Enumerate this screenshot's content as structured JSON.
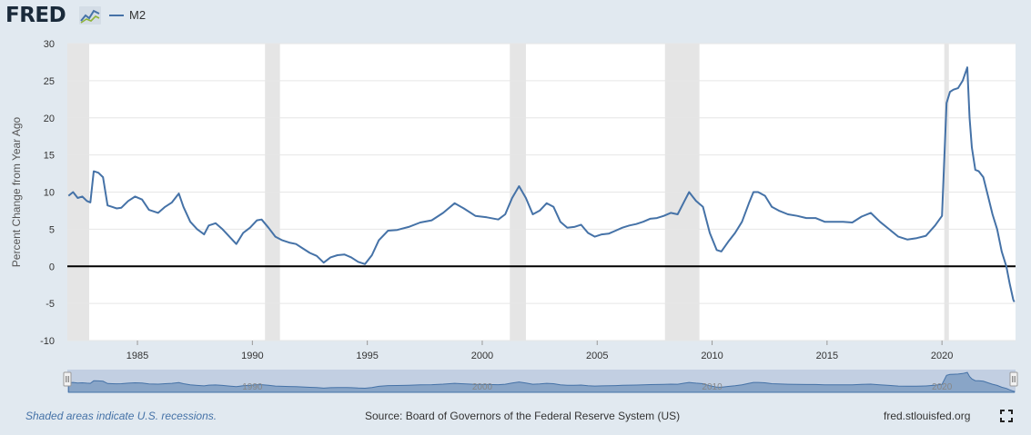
{
  "header": {
    "logo_text": "FRED",
    "legend_label": "M2"
  },
  "footer": {
    "recession_note": "Shaded areas indicate U.S. recessions.",
    "source": "Source: Board of Governors of the Federal Reserve System (US)",
    "site": "fred.stlouisfed.org"
  },
  "icons": {
    "logo": "line-chart-icon",
    "fullscreen": "fullscreen-icon"
  },
  "colors": {
    "series": "#4572a7",
    "recession_band": "#e5e5e5",
    "zero_line": "#000000",
    "background": "#e1e9f0"
  },
  "chart_data": {
    "type": "line",
    "title": "",
    "xlabel": "",
    "ylabel": "Percent Change from Year Ago",
    "xlim": [
      1981.95,
      2023.2
    ],
    "ylim": [
      -10,
      30
    ],
    "yticks": [
      30,
      25,
      20,
      15,
      10,
      5,
      0,
      -5,
      -10
    ],
    "xticks": [
      1985,
      1990,
      1995,
      2000,
      2005,
      2010,
      2015,
      2020
    ],
    "grid": true,
    "legend": "top-left",
    "recessions": [
      [
        1981.95,
        1982.9
      ],
      [
        1990.55,
        1991.2
      ],
      [
        2001.2,
        2001.9
      ],
      [
        2007.95,
        2009.45
      ],
      [
        2020.1,
        2020.3
      ]
    ],
    "navigator_labels": [
      "1990",
      "2000",
      "2010",
      "2020"
    ],
    "series": [
      {
        "name": "M2",
        "x": [
          1982.0,
          1982.2,
          1982.4,
          1982.6,
          1982.8,
          1982.95,
          1983.1,
          1983.3,
          1983.5,
          1983.7,
          1983.9,
          1984.1,
          1984.3,
          1984.6,
          1984.9,
          1985.2,
          1985.5,
          1985.9,
          1986.2,
          1986.5,
          1986.8,
          1987.0,
          1987.3,
          1987.6,
          1987.9,
          1988.1,
          1988.4,
          1988.7,
          1989.0,
          1989.3,
          1989.6,
          1989.9,
          1990.2,
          1990.4,
          1990.7,
          1991.0,
          1991.3,
          1991.6,
          1991.9,
          1992.2,
          1992.5,
          1992.8,
          1993.1,
          1993.4,
          1993.7,
          1994.0,
          1994.3,
          1994.6,
          1994.9,
          1995.2,
          1995.5,
          1995.9,
          1996.3,
          1996.8,
          1997.3,
          1997.8,
          1998.3,
          1998.8,
          1999.2,
          1999.7,
          2000.2,
          2000.7,
          2001.0,
          2001.3,
          2001.6,
          2001.9,
          2002.2,
          2002.5,
          2002.8,
          2003.1,
          2003.4,
          2003.7,
          2004.0,
          2004.3,
          2004.6,
          2004.9,
          2005.2,
          2005.5,
          2005.8,
          2006.1,
          2006.4,
          2006.7,
          2007.0,
          2007.3,
          2007.6,
          2007.9,
          2008.2,
          2008.5,
          2008.8,
          2009.0,
          2009.3,
          2009.6,
          2009.9,
          2010.2,
          2010.4,
          2010.7,
          2011.0,
          2011.3,
          2011.6,
          2011.8,
          2012.0,
          2012.3,
          2012.6,
          2012.9,
          2013.3,
          2013.7,
          2014.1,
          2014.5,
          2014.9,
          2015.3,
          2015.7,
          2016.1,
          2016.5,
          2016.9,
          2017.3,
          2017.7,
          2018.1,
          2018.5,
          2018.9,
          2019.3,
          2019.7,
          2020.0,
          2020.2,
          2020.35,
          2020.5,
          2020.7,
          2020.9,
          2021.1,
          2021.2,
          2021.3,
          2021.45,
          2021.6,
          2021.8,
          2022.0,
          2022.2,
          2022.4,
          2022.6,
          2022.8,
          2022.95,
          2023.1,
          2023.15
        ],
        "values": [
          9.5,
          10.0,
          9.2,
          9.4,
          8.8,
          8.6,
          12.8,
          12.6,
          12.0,
          8.2,
          8.0,
          7.8,
          7.9,
          8.8,
          9.4,
          9.0,
          7.6,
          7.2,
          8.0,
          8.6,
          9.8,
          8.0,
          6.0,
          5.0,
          4.3,
          5.5,
          5.8,
          5.0,
          4.0,
          3.0,
          4.5,
          5.2,
          6.2,
          6.3,
          5.2,
          4.0,
          3.5,
          3.2,
          3.0,
          2.4,
          1.8,
          1.4,
          0.5,
          1.2,
          1.5,
          1.6,
          1.2,
          0.6,
          0.3,
          1.5,
          3.5,
          4.8,
          4.9,
          5.3,
          5.9,
          6.2,
          7.2,
          8.5,
          7.8,
          6.8,
          6.6,
          6.3,
          7.0,
          9.2,
          10.8,
          9.2,
          7.0,
          7.5,
          8.5,
          8.0,
          6.0,
          5.2,
          5.3,
          5.6,
          4.5,
          4.0,
          4.3,
          4.4,
          4.8,
          5.2,
          5.5,
          5.7,
          6.0,
          6.4,
          6.5,
          6.8,
          7.2,
          7.0,
          8.8,
          10.0,
          8.8,
          8.0,
          4.5,
          2.2,
          2.0,
          3.3,
          4.5,
          6.0,
          8.5,
          10.0,
          10.0,
          9.5,
          8.0,
          7.5,
          7.0,
          6.8,
          6.5,
          6.5,
          6.0,
          6.0,
          6.0,
          5.9,
          6.7,
          7.2,
          6.0,
          5.0,
          4.0,
          3.6,
          3.8,
          4.1,
          5.5,
          6.8,
          22.0,
          23.5,
          23.8,
          24.0,
          25.0,
          26.8,
          20.0,
          16.0,
          13.0,
          12.8,
          12.0,
          9.5,
          7.0,
          5.0,
          2.0,
          0.0,
          -2.4,
          -4.5,
          -4.8
        ]
      }
    ]
  }
}
